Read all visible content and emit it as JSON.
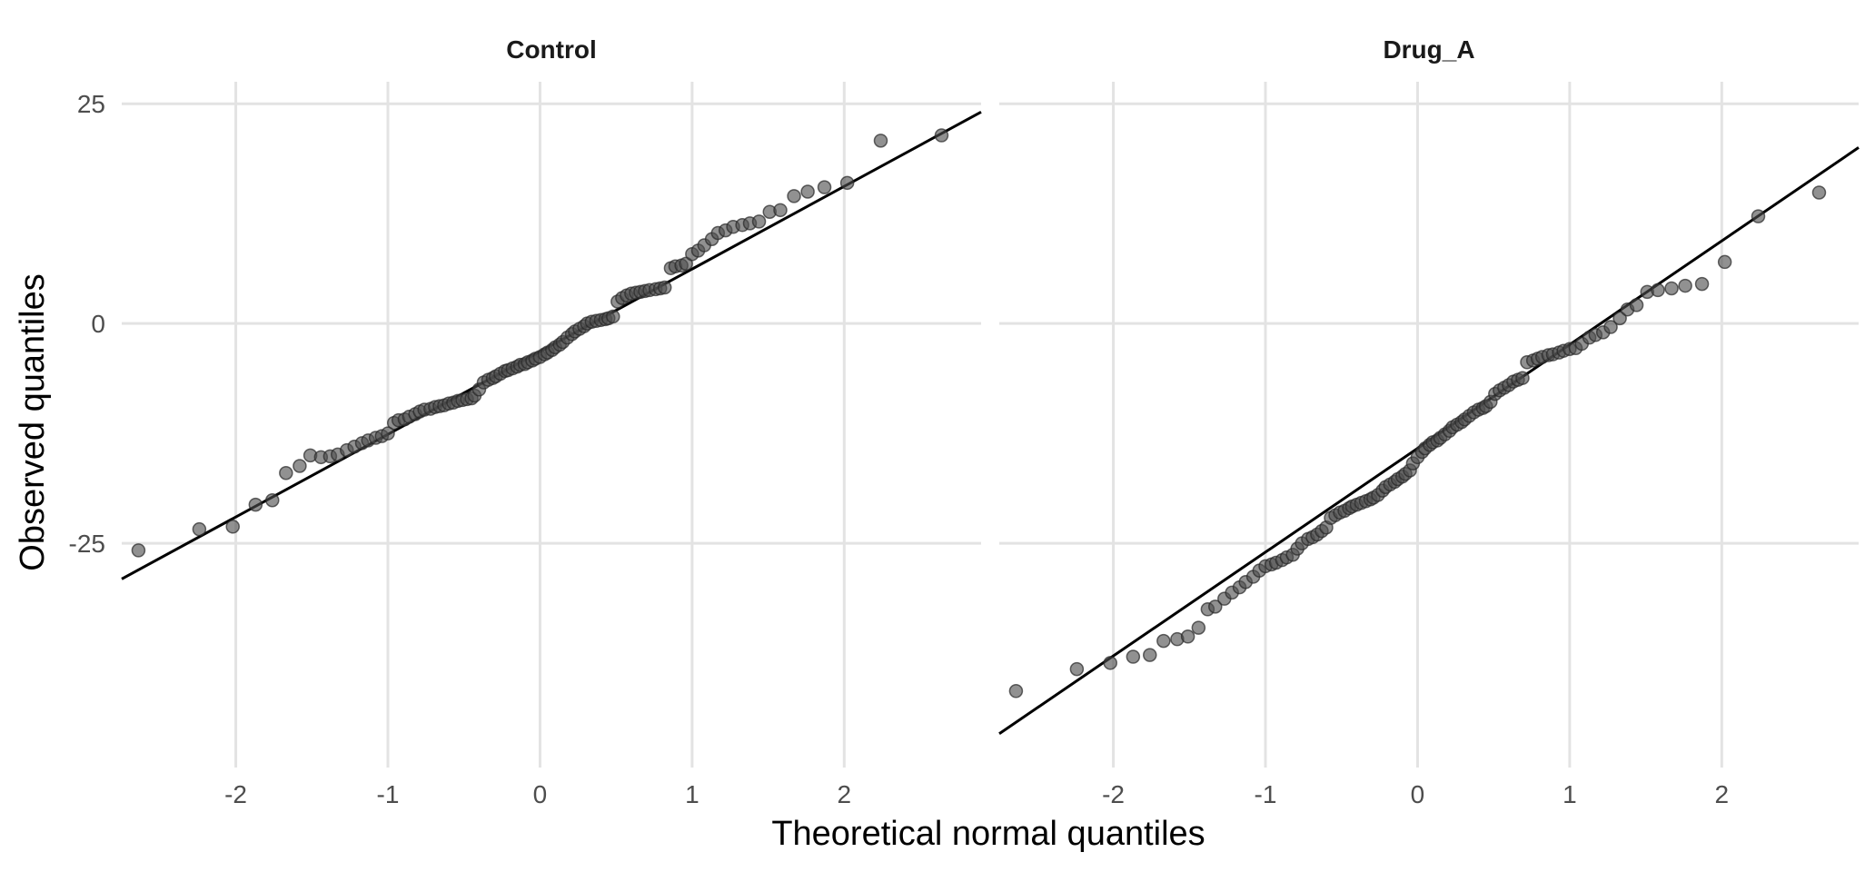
{
  "chart_data": {
    "type": "scatter",
    "subtype": "qq-plot",
    "xlabel": "Theoretical normal quantiles",
    "ylabel": "Observed quantiles",
    "xlim": [
      -2.75,
      2.9
    ],
    "ylim": [
      -50.5,
      27.5
    ],
    "x_ticks": [
      -2,
      -1,
      0,
      1,
      2
    ],
    "x_tick_labels": [
      "-2",
      "-1",
      "0",
      "1",
      "2"
    ],
    "y_ticks": [
      25,
      0,
      -25
    ],
    "y_tick_labels": [
      "25",
      "0",
      "-25"
    ],
    "grid": true,
    "legend": "none",
    "point_color": "#4d4d4d",
    "line_color": "#000000",
    "panels": [
      {
        "name": "Control",
        "reference_line": {
          "intercept": -3.2,
          "slope": 9.4
        },
        "points": [
          [
            -2.64,
            -25.8
          ],
          [
            -2.24,
            -23.4
          ],
          [
            -2.02,
            -23.1
          ],
          [
            -1.87,
            -20.6
          ],
          [
            -1.76,
            -20.1
          ],
          [
            -1.67,
            -17.0
          ],
          [
            -1.58,
            -16.2
          ],
          [
            -1.51,
            -15.0
          ],
          [
            -1.44,
            -15.2
          ],
          [
            -1.38,
            -15.1
          ],
          [
            -1.33,
            -14.9
          ],
          [
            -1.27,
            -14.4
          ],
          [
            -1.22,
            -14.0
          ],
          [
            -1.17,
            -13.6
          ],
          [
            -1.13,
            -13.3
          ],
          [
            -1.08,
            -13.0
          ],
          [
            -1.04,
            -12.8
          ],
          [
            -1.0,
            -12.5
          ],
          [
            -0.96,
            -11.3
          ],
          [
            -0.93,
            -11.0
          ],
          [
            -0.89,
            -10.9
          ],
          [
            -0.86,
            -10.6
          ],
          [
            -0.82,
            -10.3
          ],
          [
            -0.79,
            -10.0
          ],
          [
            -0.76,
            -9.8
          ],
          [
            -0.72,
            -9.7
          ],
          [
            -0.69,
            -9.5
          ],
          [
            -0.66,
            -9.4
          ],
          [
            -0.63,
            -9.3
          ],
          [
            -0.6,
            -9.1
          ],
          [
            -0.57,
            -9.0
          ],
          [
            -0.54,
            -8.8
          ],
          [
            -0.51,
            -8.7
          ],
          [
            -0.48,
            -8.6
          ],
          [
            -0.45,
            -8.5
          ],
          [
            -0.43,
            -8.2
          ],
          [
            -0.4,
            -7.5
          ],
          [
            -0.37,
            -6.7
          ],
          [
            -0.34,
            -6.4
          ],
          [
            -0.31,
            -6.2
          ],
          [
            -0.29,
            -6.0
          ],
          [
            -0.26,
            -5.7
          ],
          [
            -0.23,
            -5.4
          ],
          [
            -0.21,
            -5.3
          ],
          [
            -0.18,
            -5.1
          ],
          [
            -0.15,
            -4.9
          ],
          [
            -0.13,
            -4.7
          ],
          [
            -0.1,
            -4.6
          ],
          [
            -0.08,
            -4.4
          ],
          [
            -0.05,
            -4.2
          ],
          [
            -0.03,
            -4.0
          ],
          [
            0.0,
            -3.8
          ],
          [
            0.03,
            -3.5
          ],
          [
            0.05,
            -3.3
          ],
          [
            0.08,
            -3.0
          ],
          [
            0.1,
            -2.7
          ],
          [
            0.13,
            -2.4
          ],
          [
            0.15,
            -2.1
          ],
          [
            0.18,
            -1.6
          ],
          [
            0.21,
            -1.2
          ],
          [
            0.23,
            -0.9
          ],
          [
            0.26,
            -0.6
          ],
          [
            0.29,
            -0.3
          ],
          [
            0.31,
            0.0
          ],
          [
            0.34,
            0.2
          ],
          [
            0.37,
            0.3
          ],
          [
            0.4,
            0.4
          ],
          [
            0.43,
            0.5
          ],
          [
            0.45,
            0.6
          ],
          [
            0.48,
            0.8
          ],
          [
            0.51,
            2.5
          ],
          [
            0.54,
            2.9
          ],
          [
            0.57,
            3.2
          ],
          [
            0.6,
            3.4
          ],
          [
            0.63,
            3.5
          ],
          [
            0.66,
            3.6
          ],
          [
            0.69,
            3.7
          ],
          [
            0.72,
            3.8
          ],
          [
            0.76,
            3.9
          ],
          [
            0.79,
            4.0
          ],
          [
            0.82,
            4.1
          ],
          [
            0.86,
            6.3
          ],
          [
            0.89,
            6.5
          ],
          [
            0.93,
            6.6
          ],
          [
            0.96,
            6.8
          ],
          [
            1.0,
            7.9
          ],
          [
            1.04,
            8.3
          ],
          [
            1.08,
            8.9
          ],
          [
            1.13,
            9.6
          ],
          [
            1.17,
            10.3
          ],
          [
            1.22,
            10.6
          ],
          [
            1.27,
            11.0
          ],
          [
            1.33,
            11.2
          ],
          [
            1.38,
            11.4
          ],
          [
            1.44,
            11.6
          ],
          [
            1.51,
            12.7
          ],
          [
            1.58,
            12.9
          ],
          [
            1.67,
            14.5
          ],
          [
            1.76,
            15.0
          ],
          [
            1.87,
            15.5
          ],
          [
            2.02,
            16.0
          ],
          [
            2.24,
            20.8
          ],
          [
            2.64,
            21.4
          ]
        ]
      },
      {
        "name": "Drug_A",
        "reference_line": {
          "intercept": -14.2,
          "slope": 11.8
        },
        "points": [
          [
            -2.64,
            -41.8
          ],
          [
            -2.24,
            -39.3
          ],
          [
            -2.02,
            -38.6
          ],
          [
            -1.87,
            -37.9
          ],
          [
            -1.76,
            -37.7
          ],
          [
            -1.67,
            -36.1
          ],
          [
            -1.58,
            -35.9
          ],
          [
            -1.51,
            -35.6
          ],
          [
            -1.44,
            -34.6
          ],
          [
            -1.38,
            -32.5
          ],
          [
            -1.33,
            -32.2
          ],
          [
            -1.27,
            -31.3
          ],
          [
            -1.22,
            -30.6
          ],
          [
            -1.17,
            -30.0
          ],
          [
            -1.13,
            -29.4
          ],
          [
            -1.08,
            -28.8
          ],
          [
            -1.04,
            -28.1
          ],
          [
            -1.0,
            -27.6
          ],
          [
            -0.96,
            -27.4
          ],
          [
            -0.93,
            -27.2
          ],
          [
            -0.89,
            -26.9
          ],
          [
            -0.86,
            -26.6
          ],
          [
            -0.82,
            -26.3
          ],
          [
            -0.79,
            -25.6
          ],
          [
            -0.76,
            -25.0
          ],
          [
            -0.72,
            -24.5
          ],
          [
            -0.69,
            -24.3
          ],
          [
            -0.66,
            -24.0
          ],
          [
            -0.63,
            -23.6
          ],
          [
            -0.6,
            -23.2
          ],
          [
            -0.57,
            -22.1
          ],
          [
            -0.54,
            -21.8
          ],
          [
            -0.51,
            -21.5
          ],
          [
            -0.48,
            -21.3
          ],
          [
            -0.45,
            -21.0
          ],
          [
            -0.43,
            -20.8
          ],
          [
            -0.4,
            -20.6
          ],
          [
            -0.37,
            -20.4
          ],
          [
            -0.34,
            -20.2
          ],
          [
            -0.31,
            -20.0
          ],
          [
            -0.29,
            -19.8
          ],
          [
            -0.26,
            -19.5
          ],
          [
            -0.23,
            -19.0
          ],
          [
            -0.21,
            -18.6
          ],
          [
            -0.18,
            -18.3
          ],
          [
            -0.15,
            -18.0
          ],
          [
            -0.13,
            -17.7
          ],
          [
            -0.1,
            -17.4
          ],
          [
            -0.08,
            -17.1
          ],
          [
            -0.05,
            -16.7
          ],
          [
            -0.03,
            -15.9
          ],
          [
            0.0,
            -15.2
          ],
          [
            0.03,
            -14.6
          ],
          [
            0.05,
            -14.2
          ],
          [
            0.08,
            -13.8
          ],
          [
            0.1,
            -13.5
          ],
          [
            0.13,
            -13.3
          ],
          [
            0.15,
            -13.0
          ],
          [
            0.18,
            -12.6
          ],
          [
            0.21,
            -12.2
          ],
          [
            0.23,
            -11.8
          ],
          [
            0.26,
            -11.5
          ],
          [
            0.29,
            -11.2
          ],
          [
            0.31,
            -10.9
          ],
          [
            0.34,
            -10.5
          ],
          [
            0.37,
            -10.1
          ],
          [
            0.4,
            -9.8
          ],
          [
            0.43,
            -9.6
          ],
          [
            0.45,
            -9.4
          ],
          [
            0.48,
            -8.9
          ],
          [
            0.51,
            -8.0
          ],
          [
            0.54,
            -7.6
          ],
          [
            0.57,
            -7.3
          ],
          [
            0.6,
            -7.0
          ],
          [
            0.63,
            -6.6
          ],
          [
            0.66,
            -6.4
          ],
          [
            0.69,
            -6.2
          ],
          [
            0.72,
            -4.4
          ],
          [
            0.76,
            -4.2
          ],
          [
            0.79,
            -4.0
          ],
          [
            0.82,
            -3.8
          ],
          [
            0.86,
            -3.6
          ],
          [
            0.89,
            -3.5
          ],
          [
            0.93,
            -3.3
          ],
          [
            0.96,
            -3.1
          ],
          [
            1.0,
            -2.9
          ],
          [
            1.04,
            -2.8
          ],
          [
            1.08,
            -2.3
          ],
          [
            1.13,
            -1.6
          ],
          [
            1.17,
            -1.3
          ],
          [
            1.22,
            -1.0
          ],
          [
            1.27,
            -0.4
          ],
          [
            1.33,
            0.6
          ],
          [
            1.38,
            1.6
          ],
          [
            1.44,
            2.1
          ],
          [
            1.51,
            3.6
          ],
          [
            1.58,
            3.8
          ],
          [
            1.67,
            4.0
          ],
          [
            1.76,
            4.3
          ],
          [
            1.87,
            4.5
          ],
          [
            2.02,
            7.0
          ],
          [
            2.24,
            12.2
          ],
          [
            2.64,
            14.9
          ]
        ]
      }
    ]
  }
}
